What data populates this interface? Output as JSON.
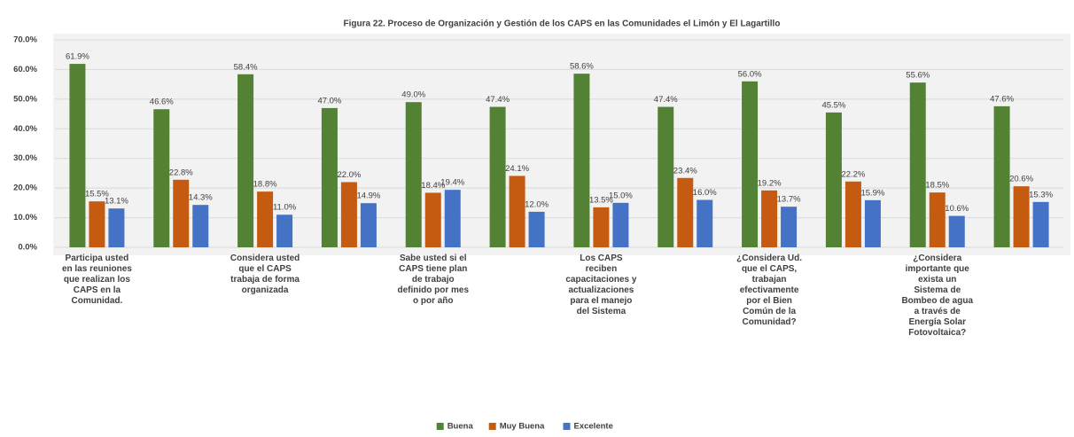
{
  "chart_data": {
    "type": "bar",
    "title": "Figura 22. Proceso de Organización y Gestión de los CAPS en las Comunidades el Limón y El Lagartillo",
    "categories": [
      "Participa usted en las reuniones que realizan los CAPS en la Comunidad.",
      null,
      "Considera usted que el CAPS trabaja de forma organizada",
      null,
      "Sabe usted si el CAPS tiene plan de trabajo definido por mes o por año",
      null,
      "Los CAPS reciben capacitaciones y actualizaciones para el manejo del Sistema",
      null,
      "¿Considera Ud. que el CAPS, trabajan efectivamente por el Bien Común de la Comunidad?",
      null,
      "¿Considera importante que exista un Sistema de Bombeo de agua a través de Energía Solar Fotovoltaica?",
      null
    ],
    "series": [
      {
        "name": "Buena",
        "color": "#548235",
        "values": [
          61.9,
          46.6,
          58.4,
          47.0,
          49.0,
          47.4,
          58.6,
          47.4,
          56.0,
          45.5,
          55.6,
          47.6
        ],
        "value_labels": [
          "61.9%",
          "46.6%",
          "58.4%",
          "47.0%",
          "49.0%",
          "47.4%",
          "58.6%",
          "47.4%",
          "56.0%",
          "45.5%",
          "55.6%",
          "47.6%"
        ]
      },
      {
        "name": "Muy Buena",
        "color": "#c55a11",
        "values": [
          15.5,
          22.8,
          18.8,
          22.0,
          18.4,
          24.1,
          13.5,
          23.4,
          19.2,
          22.2,
          18.5,
          20.6
        ],
        "value_labels": [
          "15.5%",
          "22.8%",
          "18.8%",
          "22.0%",
          "18.4%",
          "24.1%",
          "13.5%",
          "23.4%",
          "19.2%",
          "22.2%",
          "18.5%",
          "20.6%"
        ]
      },
      {
        "name": "Excelente",
        "color": "#4472c4",
        "values": [
          13.1,
          14.3,
          11.0,
          14.9,
          19.4,
          12.0,
          15.0,
          16.0,
          13.7,
          15.9,
          10.6,
          15.3
        ],
        "value_labels": [
          "13.1%",
          "14.3%",
          "11.0%",
          "14.9%",
          "19.4%",
          "12.0%",
          "15.0%",
          "16.0%",
          "13.7%",
          "15.9%",
          "10.6%",
          "15.3%"
        ]
      }
    ],
    "ylim": [
      0,
      70
    ],
    "yticks": [
      {
        "value": 0,
        "label": "0.0%"
      },
      {
        "value": 10,
        "label": "10.0%"
      },
      {
        "value": 20,
        "label": "20.0%"
      },
      {
        "value": 30,
        "label": "30.0%"
      },
      {
        "value": 40,
        "label": "40.0%"
      },
      {
        "value": 50,
        "label": "50.0%"
      },
      {
        "value": 60,
        "label": "60.0%"
      },
      {
        "value": 70,
        "label": "70.0%"
      }
    ],
    "grid": true,
    "legend": "bottom"
  }
}
